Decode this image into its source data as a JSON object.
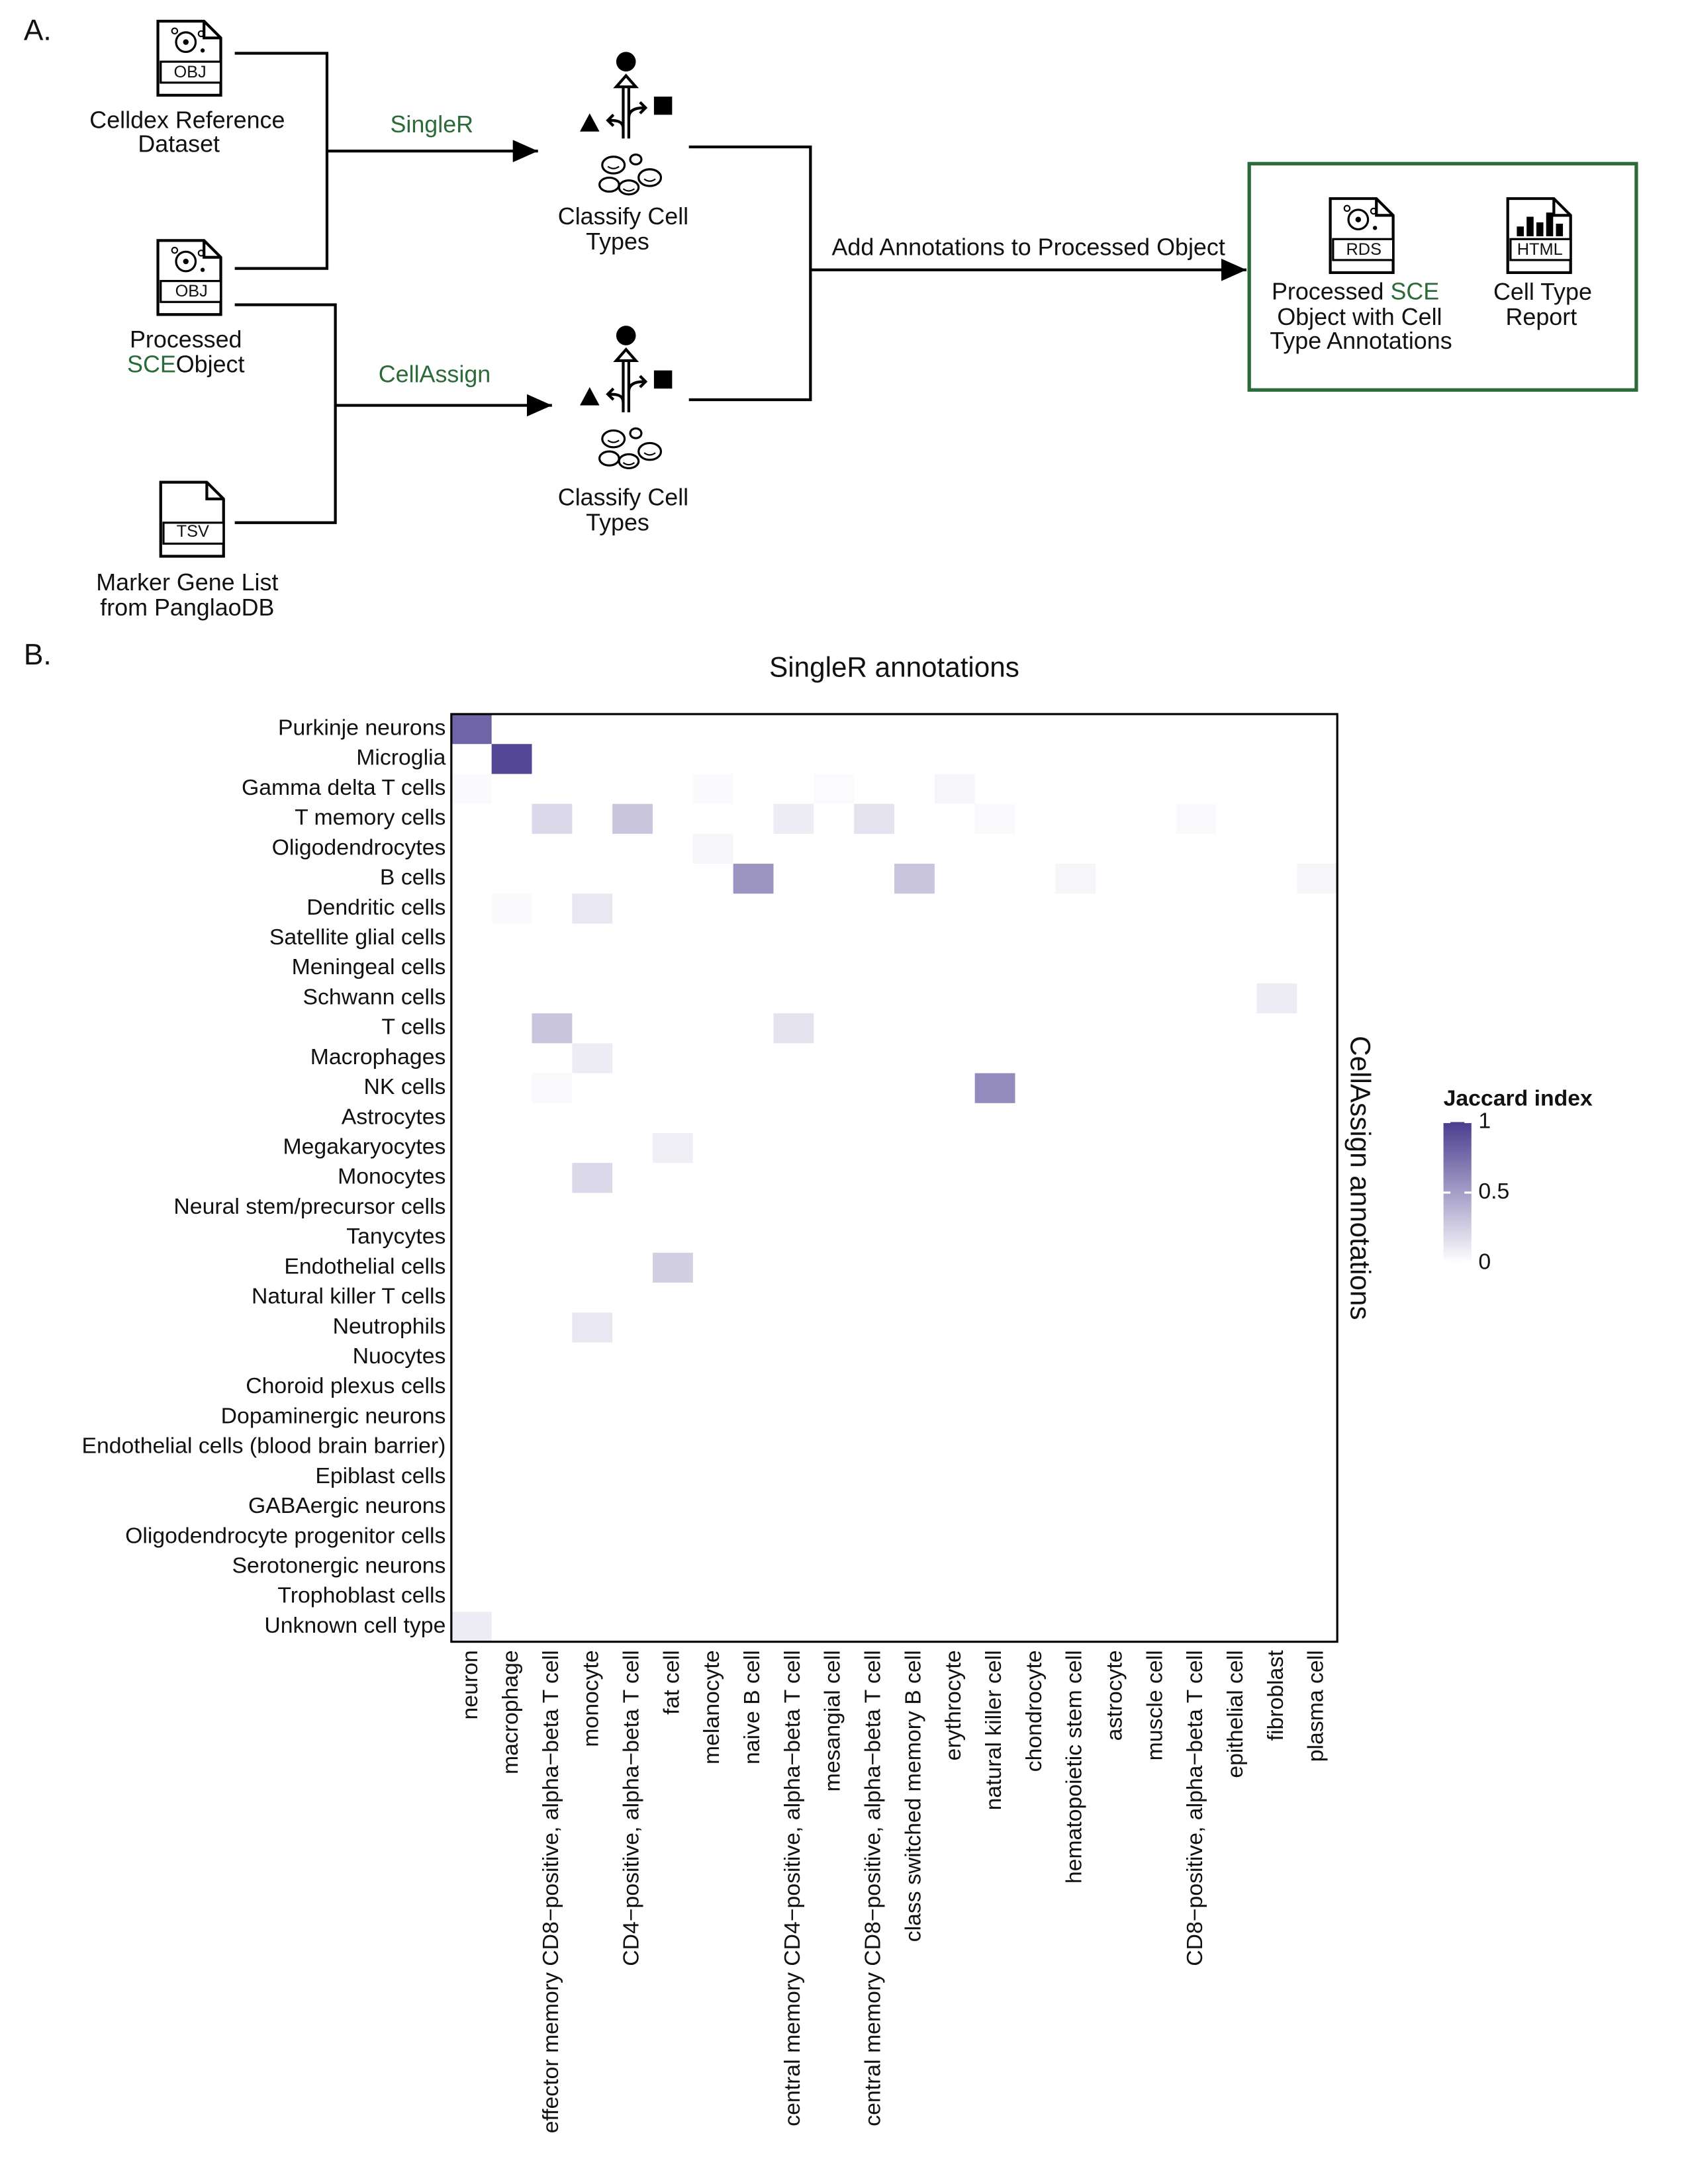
{
  "panel_a": {
    "label": "A.",
    "inputs": [
      {
        "icon": "OBJ",
        "lines": [
          "Celldex Reference",
          "Dataset"
        ]
      },
      {
        "icon": "OBJ",
        "lines": [
          "Processed",
          "SCE",
          "Object"
        ]
      },
      {
        "icon": "TSV",
        "lines": [
          "Marker Gene List",
          "from PanglaoDB"
        ]
      }
    ],
    "methods": [
      {
        "name": "SingleR",
        "lines": [
          "Classify Cell",
          "Types"
        ]
      },
      {
        "name": "CellAssign",
        "lines": [
          "Classify Cell",
          "Types"
        ]
      }
    ],
    "merge_label": "Add Annotations to Processed Object",
    "outputs": [
      {
        "icon": "RDS",
        "lines": [
          "Processed",
          "SCE",
          "Object with Cell",
          "Type Annotations"
        ]
      },
      {
        "icon": "HTML",
        "lines": [
          "Cell Type",
          "Report"
        ]
      }
    ]
  },
  "panel_b_label": "B.",
  "chart_data": {
    "type": "heatmap",
    "title": "SingleR annotations",
    "y_label": "CellAssign annotations",
    "x_categories": [
      "neuron",
      "macrophage",
      "effector memory CD8−positive, alpha−beta T cell",
      "monocyte",
      "CD4−positive, alpha−beta T cell",
      "fat cell",
      "melanocyte",
      "naive B cell",
      "central memory CD4−positive, alpha−beta T cell",
      "mesangial cell",
      "central memory CD8−positive, alpha−beta T cell",
      "class switched memory B cell",
      "erythrocyte",
      "natural killer cell",
      "chondrocyte",
      "hematopoietic stem cell",
      "astrocyte",
      "muscle cell",
      "CD8−positive, alpha−beta T cell",
      "epithelial cell",
      "fibroblast",
      "plasma cell"
    ],
    "y_categories": [
      "Purkinje neurons",
      "Microglia",
      "Gamma delta T cells",
      "T memory cells",
      "Oligodendrocytes",
      "B cells",
      "Dendritic cells",
      "Satellite glial cells",
      "Meningeal cells",
      "Schwann cells",
      "T cells",
      "Macrophages",
      "NK cells",
      "Astrocytes",
      "Megakaryocytes",
      "Monocytes",
      "Neural stem/precursor cells",
      "Tanycytes",
      "Endothelial cells",
      "Natural killer T cells",
      "Neutrophils",
      "Nuocytes",
      "Choroid plexus cells",
      "Dopaminergic neurons",
      "Endothelial cells (blood brain barrier)",
      "Epiblast cells",
      "GABAergic neurons",
      "Oligodendrocyte progenitor cells",
      "Serotonergic neurons",
      "Trophoblast cells",
      "Unknown cell type"
    ],
    "values": [
      [
        0.8,
        0,
        0,
        0,
        0,
        0,
        0,
        0,
        0,
        0,
        0,
        0,
        0,
        0,
        0,
        0,
        0,
        0,
        0,
        0,
        0,
        0
      ],
      [
        0,
        0.95,
        0,
        0,
        0,
        0,
        0,
        0,
        0,
        0,
        0,
        0,
        0,
        0,
        0,
        0,
        0,
        0,
        0,
        0,
        0,
        0
      ],
      [
        0.03,
        0,
        0,
        0,
        0,
        0,
        0.03,
        0,
        0,
        0.02,
        0,
        0,
        0.05,
        0,
        0,
        0,
        0,
        0,
        0,
        0,
        0,
        0
      ],
      [
        0,
        0,
        0.2,
        0,
        0.3,
        0,
        0,
        0,
        0.1,
        0,
        0.15,
        0,
        0,
        0.03,
        0,
        0,
        0,
        0,
        0.03,
        0,
        0,
        0
      ],
      [
        0,
        0,
        0,
        0,
        0,
        0,
        0.05,
        0,
        0,
        0,
        0,
        0,
        0,
        0,
        0,
        0,
        0,
        0,
        0,
        0,
        0,
        0
      ],
      [
        0,
        0,
        0,
        0,
        0,
        0,
        0,
        0.55,
        0,
        0,
        0,
        0.3,
        0,
        0,
        0,
        0.05,
        0,
        0,
        0,
        0,
        0,
        0.05
      ],
      [
        0,
        0.03,
        0,
        0.12,
        0,
        0,
        0,
        0,
        0,
        0,
        0,
        0,
        0,
        0,
        0,
        0,
        0,
        0,
        0,
        0,
        0,
        0
      ],
      [
        0,
        0,
        0,
        0,
        0,
        0,
        0,
        0,
        0,
        0,
        0,
        0,
        0,
        0,
        0,
        0,
        0,
        0,
        0,
        0,
        0,
        0
      ],
      [
        0,
        0,
        0,
        0,
        0,
        0,
        0,
        0,
        0,
        0,
        0,
        0,
        0,
        0,
        0,
        0,
        0,
        0,
        0,
        0,
        0,
        0
      ],
      [
        0,
        0,
        0,
        0,
        0,
        0,
        0,
        0,
        0,
        0,
        0,
        0,
        0,
        0,
        0,
        0,
        0,
        0,
        0,
        0,
        0.1,
        0
      ],
      [
        0,
        0,
        0.3,
        0,
        0,
        0,
        0,
        0,
        0.15,
        0,
        0,
        0,
        0,
        0,
        0,
        0,
        0,
        0,
        0,
        0,
        0,
        0
      ],
      [
        0,
        0,
        0,
        0.1,
        0,
        0,
        0,
        0,
        0,
        0,
        0,
        0,
        0,
        0,
        0,
        0,
        0,
        0,
        0,
        0,
        0,
        0
      ],
      [
        0,
        0,
        0.03,
        0,
        0,
        0,
        0,
        0,
        0,
        0,
        0,
        0,
        0,
        0.6,
        0,
        0,
        0,
        0,
        0,
        0,
        0,
        0
      ],
      [
        0,
        0,
        0,
        0,
        0,
        0,
        0,
        0,
        0,
        0,
        0,
        0,
        0,
        0,
        0,
        0,
        0,
        0,
        0,
        0,
        0,
        0
      ],
      [
        0,
        0,
        0,
        0,
        0,
        0.08,
        0,
        0,
        0,
        0,
        0,
        0,
        0,
        0,
        0,
        0,
        0,
        0,
        0,
        0,
        0,
        0
      ],
      [
        0,
        0,
        0,
        0.2,
        0,
        0,
        0,
        0,
        0,
        0,
        0,
        0,
        0,
        0,
        0,
        0,
        0,
        0,
        0,
        0,
        0,
        0
      ],
      [
        0,
        0,
        0,
        0,
        0,
        0,
        0,
        0,
        0,
        0,
        0,
        0,
        0,
        0,
        0,
        0,
        0,
        0,
        0,
        0,
        0,
        0
      ],
      [
        0,
        0,
        0,
        0,
        0,
        0,
        0,
        0,
        0,
        0,
        0,
        0,
        0,
        0,
        0,
        0,
        0,
        0,
        0,
        0,
        0,
        0
      ],
      [
        0,
        0,
        0,
        0,
        0,
        0.25,
        0,
        0,
        0,
        0,
        0,
        0,
        0,
        0,
        0,
        0,
        0,
        0,
        0,
        0,
        0,
        0
      ],
      [
        0,
        0,
        0,
        0,
        0,
        0,
        0,
        0,
        0,
        0,
        0,
        0,
        0,
        0,
        0,
        0,
        0,
        0,
        0,
        0,
        0,
        0
      ],
      [
        0,
        0,
        0,
        0.12,
        0,
        0,
        0,
        0,
        0,
        0,
        0,
        0,
        0,
        0,
        0,
        0,
        0,
        0,
        0,
        0,
        0,
        0
      ],
      [
        0,
        0,
        0,
        0,
        0,
        0,
        0,
        0,
        0,
        0,
        0,
        0,
        0,
        0,
        0,
        0,
        0,
        0,
        0,
        0,
        0,
        0
      ],
      [
        0,
        0,
        0,
        0,
        0,
        0,
        0,
        0,
        0,
        0,
        0,
        0,
        0,
        0,
        0,
        0,
        0,
        0,
        0,
        0,
        0,
        0
      ],
      [
        0,
        0,
        0,
        0,
        0,
        0,
        0,
        0,
        0,
        0,
        0,
        0,
        0,
        0,
        0,
        0,
        0,
        0,
        0,
        0,
        0,
        0
      ],
      [
        0,
        0,
        0,
        0,
        0,
        0,
        0,
        0,
        0,
        0,
        0,
        0,
        0,
        0,
        0,
        0,
        0,
        0,
        0,
        0,
        0,
        0
      ],
      [
        0,
        0,
        0,
        0,
        0,
        0,
        0,
        0,
        0,
        0,
        0,
        0,
        0,
        0,
        0,
        0,
        0,
        0,
        0,
        0,
        0,
        0
      ],
      [
        0,
        0,
        0,
        0,
        0,
        0,
        0,
        0,
        0,
        0,
        0,
        0,
        0,
        0,
        0,
        0,
        0,
        0,
        0,
        0,
        0,
        0
      ],
      [
        0,
        0,
        0,
        0,
        0,
        0,
        0,
        0,
        0,
        0,
        0,
        0,
        0,
        0,
        0,
        0,
        0,
        0,
        0,
        0,
        0,
        0
      ],
      [
        0,
        0,
        0,
        0,
        0,
        0,
        0,
        0,
        0,
        0,
        0,
        0,
        0,
        0,
        0,
        0,
        0,
        0,
        0,
        0,
        0,
        0
      ],
      [
        0,
        0,
        0,
        0,
        0,
        0,
        0,
        0,
        0,
        0,
        0,
        0,
        0,
        0,
        0,
        0,
        0,
        0,
        0,
        0,
        0,
        0
      ],
      [
        0.1,
        0,
        0,
        0,
        0,
        0,
        0,
        0,
        0,
        0,
        0,
        0,
        0,
        0,
        0,
        0,
        0,
        0,
        0,
        0,
        0,
        0
      ]
    ],
    "colormap": [
      "#ffffff",
      "#4b3d8f"
    ],
    "colorbar": {
      "title": "Jaccard index",
      "lim": [
        0,
        1
      ],
      "ticks": [
        0,
        0.5,
        1
      ]
    }
  }
}
